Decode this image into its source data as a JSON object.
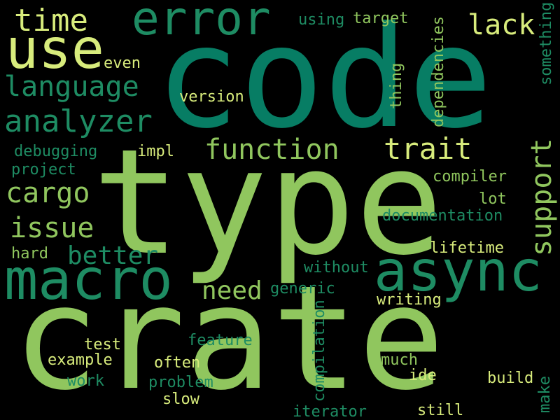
{
  "words": [
    {
      "text": "crate",
      "color": "#90c65e"
    },
    {
      "text": "type",
      "color": "#90c65e"
    },
    {
      "text": "code",
      "color": "#077d64"
    },
    {
      "text": "macro",
      "color": "#1e8c63"
    },
    {
      "text": "async",
      "color": "#1e8c63"
    },
    {
      "text": "use",
      "color": "#d8ec7c"
    },
    {
      "text": "error",
      "color": "#1e8c63"
    },
    {
      "text": "time",
      "color": "#d8ec7c"
    },
    {
      "text": "language",
      "color": "#1e8c63"
    },
    {
      "text": "analyzer",
      "color": "#1e8c63"
    },
    {
      "text": "function",
      "color": "#90c65e"
    },
    {
      "text": "trait",
      "color": "#d8ec7c"
    },
    {
      "text": "lack",
      "color": "#d8ec7c"
    },
    {
      "text": "support",
      "color": "#90c65e"
    },
    {
      "text": "cargo",
      "color": "#90c65e"
    },
    {
      "text": "issue",
      "color": "#90c65e"
    },
    {
      "text": "better",
      "color": "#1e8c63"
    },
    {
      "text": "need",
      "color": "#90c65e"
    },
    {
      "text": "generic",
      "color": "#1e8c63"
    },
    {
      "text": "using",
      "color": "#1e8c63"
    },
    {
      "text": "target",
      "color": "#90c65e"
    },
    {
      "text": "dependencies",
      "color": "#90c65e"
    },
    {
      "text": "something",
      "color": "#1e8c63"
    },
    {
      "text": "even",
      "color": "#d8ec7c"
    },
    {
      "text": "version",
      "color": "#d8ec7c"
    },
    {
      "text": "thing",
      "color": "#90c65e"
    },
    {
      "text": "debugging",
      "color": "#1e8c63"
    },
    {
      "text": "impl",
      "color": "#d8ec7c"
    },
    {
      "text": "project",
      "color": "#1e8c63"
    },
    {
      "text": "compiler",
      "color": "#90c65e"
    },
    {
      "text": "lot",
      "color": "#90c65e"
    },
    {
      "text": "documentation",
      "color": "#1e8c63"
    },
    {
      "text": "hard",
      "color": "#90c65e"
    },
    {
      "text": "lifetime",
      "color": "#d8ec7c"
    },
    {
      "text": "without",
      "color": "#1e8c63"
    },
    {
      "text": "writing",
      "color": "#d8ec7c"
    },
    {
      "text": "compilation",
      "color": "#1e8c63"
    },
    {
      "text": "feature",
      "color": "#1e8c63"
    },
    {
      "text": "test",
      "color": "#d8ec7c"
    },
    {
      "text": "example",
      "color": "#d8ec7c"
    },
    {
      "text": "often",
      "color": "#d8ec7c"
    },
    {
      "text": "much",
      "color": "#90c65e"
    },
    {
      "text": "ide",
      "color": "#d8ec7c"
    },
    {
      "text": "build",
      "color": "#d8ec7c"
    },
    {
      "text": "work",
      "color": "#1e8c63"
    },
    {
      "text": "problem",
      "color": "#1e8c63"
    },
    {
      "text": "make",
      "color": "#1e8c63"
    },
    {
      "text": "slow",
      "color": "#d8ec7c"
    },
    {
      "text": "iterator",
      "color": "#1e8c63"
    },
    {
      "text": "still",
      "color": "#d8ec7c"
    }
  ]
}
